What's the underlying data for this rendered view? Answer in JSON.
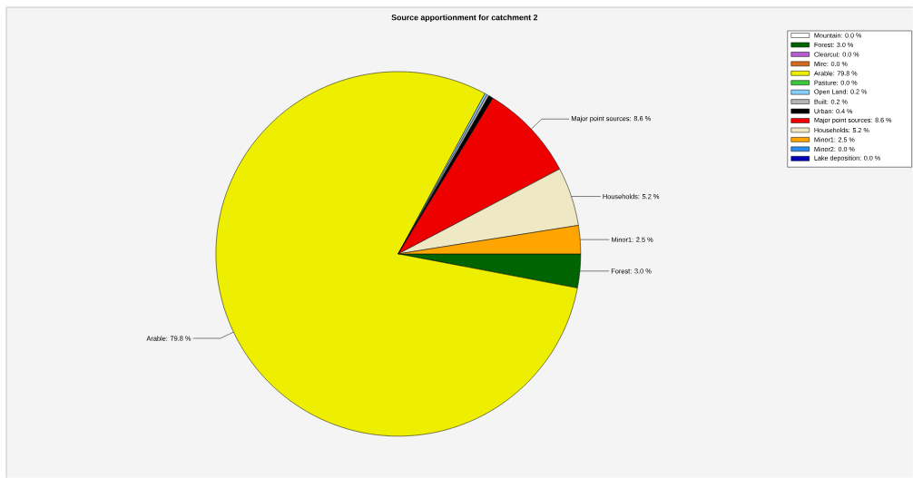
{
  "chart_data": {
    "type": "pie",
    "title": "Source apportionment for catchment 2",
    "categories": [
      "Mountain: 0.0 %",
      "Forest: 3.0 %",
      "Clearcut: 0.0 %",
      "Mire: 0.0 %",
      "Arable: 79.8 %",
      "Pasture: 0.0 %",
      "Open Land: 0.2 %",
      "Built: 0.2 %",
      "Urban: 0.4 %",
      "Major point sources: 8.6 %",
      "Households: 5.2 %",
      "Minor1: 2.5 %",
      "Minor2: 0.0 %",
      "Lake deposition: 0.0 %"
    ],
    "values": [
      0.0,
      3.0,
      0.0,
      0.0,
      79.8,
      0.0,
      0.2,
      0.2,
      0.4,
      8.6,
      5.2,
      2.5,
      0.0,
      0.0
    ],
    "colors": [
      "#ffffff",
      "#006400",
      "#b45fd0",
      "#d2691e",
      "#eeee00",
      "#3cc83c",
      "#87cefa",
      "#b4b4b4",
      "#000000",
      "#ee0000",
      "#eee8c4",
      "#ffa500",
      "#2d8cf0",
      "#0000b4"
    ],
    "legend": "top right"
  }
}
